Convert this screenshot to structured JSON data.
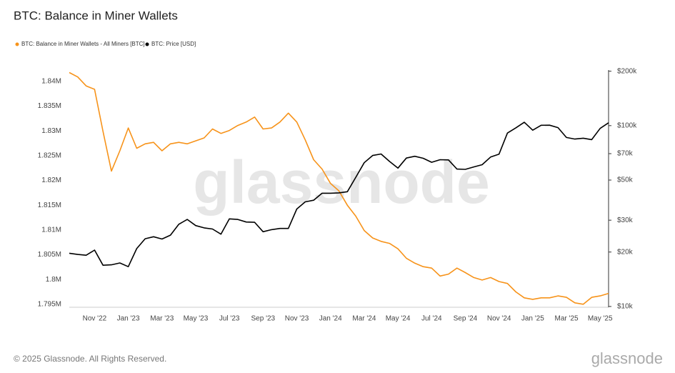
{
  "chart_data": {
    "type": "line",
    "title": "BTC: Balance in Miner Wallets",
    "watermark": "glassnode",
    "footer": "© 2025 Glassnode. All Rights Reserved.",
    "logo": "glassnode",
    "categories": [
      null,
      null,
      null,
      "Nov '22",
      null,
      null,
      null,
      "Jan '23",
      null,
      null,
      null,
      "Mar '23",
      null,
      null,
      null,
      "May '23",
      null,
      null,
      null,
      "Jul '23",
      null,
      null,
      null,
      "Sep '23",
      null,
      null,
      null,
      "Nov '23",
      null,
      null,
      null,
      "Jan '24",
      null,
      null,
      null,
      "Mar '24",
      null,
      null,
      null,
      "May '24",
      null,
      null,
      null,
      "Jul '24",
      null,
      null,
      null,
      "Sep '24",
      null,
      null,
      null,
      "Nov '24",
      null,
      null,
      null,
      "Jan '25",
      null,
      null,
      null,
      "Mar '25",
      null,
      null,
      null,
      "May '25",
      null
    ],
    "series": [
      {
        "name": "BTC: Balance in Miner Wallets - All Miners [BTC]",
        "color": "#f7931a",
        "axis": "y",
        "values": [
          1841800,
          1840900,
          1839100,
          1838400,
          1829900,
          1821900,
          1826000,
          1830600,
          1826500,
          1827400,
          1827700,
          1826000,
          1827400,
          1827700,
          1827400,
          1828000,
          1828600,
          1830400,
          1829500,
          1830100,
          1831100,
          1831800,
          1832800,
          1830400,
          1830600,
          1831800,
          1833600,
          1831800,
          1828200,
          1824200,
          1822300,
          1819400,
          1817900,
          1815000,
          1812800,
          1809900,
          1808400,
          1807700,
          1807300,
          1806200,
          1804300,
          1803300,
          1802600,
          1802300,
          1800700,
          1801100,
          1802300,
          1801400,
          1800400,
          1799900,
          1800400,
          1799600,
          1799200,
          1797500,
          1796300,
          1796000,
          1796300,
          1796300,
          1796700,
          1796400,
          1795300,
          1795000,
          1796400,
          1796700,
          1797200
        ]
      },
      {
        "name": "BTC: Price [USD]",
        "color": "#000000",
        "axis": "y2",
        "values": [
          19700,
          19400,
          19200,
          20500,
          16900,
          17000,
          17400,
          16600,
          20900,
          23700,
          24300,
          23600,
          24800,
          28500,
          30300,
          28000,
          27200,
          26800,
          25100,
          30500,
          30300,
          29300,
          29200,
          25900,
          26600,
          27000,
          27000,
          34600,
          37900,
          38700,
          42300,
          42300,
          42500,
          43100,
          51800,
          62400,
          68400,
          69700,
          63400,
          58200,
          66200,
          67700,
          66000,
          62700,
          64800,
          64600,
          57500,
          57300,
          59100,
          60800,
          67000,
          69500,
          91000,
          97200,
          104400,
          94400,
          100500,
          100600,
          97500,
          86000,
          84300,
          85200,
          83700,
          96500,
          103700
        ]
      }
    ],
    "ylim": [
      1794400,
      1842300
    ],
    "yticks": [
      {
        "value": 1795000,
        "label": "1.795M"
      },
      {
        "value": 1800000,
        "label": "1.8M"
      },
      {
        "value": 1805000,
        "label": "1.805M"
      },
      {
        "value": 1810000,
        "label": "1.81M"
      },
      {
        "value": 1815000,
        "label": "1.815M"
      },
      {
        "value": 1820000,
        "label": "1.82M"
      },
      {
        "value": 1825000,
        "label": "1.825M"
      },
      {
        "value": 1830000,
        "label": "1.83M"
      },
      {
        "value": 1835000,
        "label": "1.835M"
      },
      {
        "value": 1840000,
        "label": "1.84M"
      }
    ],
    "y2lim": [
      9900,
      203000
    ],
    "y2scale": "log",
    "y2ticks": [
      {
        "value": 10000,
        "label": "$10k"
      },
      {
        "value": 20000,
        "label": "$20k"
      },
      {
        "value": 30000,
        "label": "$30k"
      },
      {
        "value": 50000,
        "label": "$50k"
      },
      {
        "value": 70000,
        "label": "$70k"
      },
      {
        "value": 100000,
        "label": "$100k"
      },
      {
        "value": 200000,
        "label": "$200k"
      }
    ],
    "grid": false
  }
}
